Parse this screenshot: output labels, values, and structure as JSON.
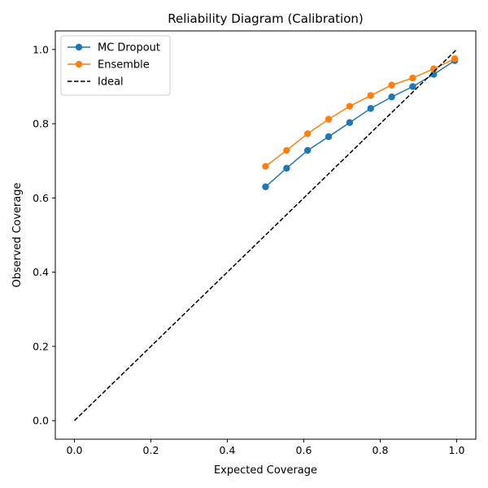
{
  "chart_data": {
    "type": "line",
    "title": "Reliability Diagram (Calibration)",
    "xlabel": "Expected Coverage",
    "ylabel": "Observed Coverage",
    "xlim": [
      -0.05,
      1.05
    ],
    "ylim": [
      -0.05,
      1.05
    ],
    "xticks": [
      0.0,
      0.2,
      0.4,
      0.6,
      0.8,
      1.0
    ],
    "yticks": [
      0.0,
      0.2,
      0.4,
      0.6,
      0.8,
      1.0
    ],
    "tick_format": "0.0",
    "grid": false,
    "legend_position": "upper-left",
    "series": [
      {
        "name": "MC Dropout",
        "color": "#1f77b4",
        "marker": "circle",
        "line": "solid",
        "x": [
          0.5,
          0.555,
          0.61,
          0.665,
          0.72,
          0.775,
          0.83,
          0.885,
          0.94,
          0.995
        ],
        "y": [
          0.63,
          0.68,
          0.728,
          0.765,
          0.803,
          0.841,
          0.872,
          0.9,
          0.933,
          0.97
        ]
      },
      {
        "name": "Ensemble",
        "color": "#ff7f0e",
        "marker": "circle",
        "line": "solid",
        "x": [
          0.5,
          0.555,
          0.61,
          0.665,
          0.72,
          0.775,
          0.83,
          0.885,
          0.94,
          0.995
        ],
        "y": [
          0.685,
          0.728,
          0.773,
          0.812,
          0.847,
          0.876,
          0.904,
          0.923,
          0.948,
          0.975
        ]
      },
      {
        "name": "Ideal",
        "color": "#000000",
        "marker": "none",
        "line": "dashed",
        "x": [
          0.0,
          1.0
        ],
        "y": [
          0.0,
          1.0
        ]
      }
    ]
  }
}
